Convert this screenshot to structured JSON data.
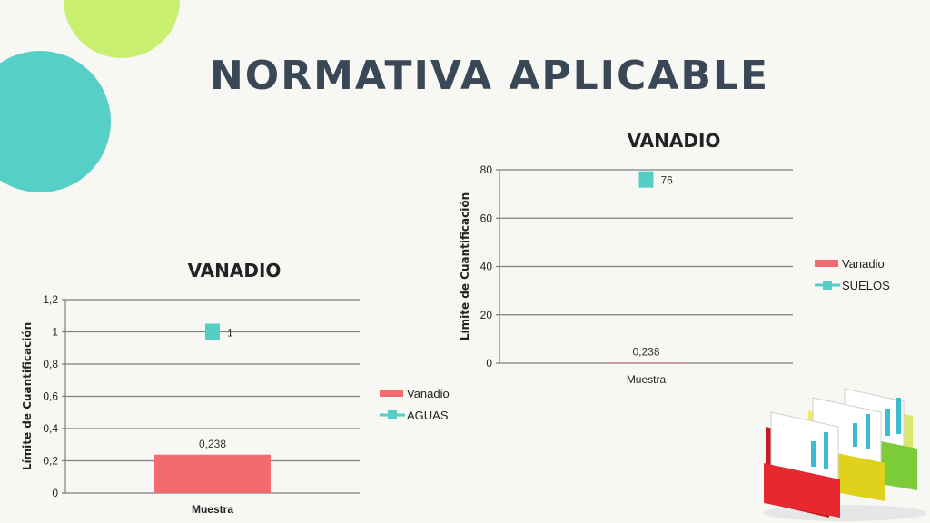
{
  "slide": {
    "title": "NORMATIVA APLICABLE"
  },
  "colors": {
    "background": "#f7f7f4",
    "title": "#3a4756",
    "circle_teal": "#56cfc6",
    "circle_green": "#c9ef70",
    "bar_red": "#f26b6f",
    "marker_teal": "#55cfc6",
    "grid": "#7f7f7f"
  },
  "decorations": {
    "folders_icon": "colored-folders-with-charts-icon"
  },
  "chart_data": [
    {
      "type": "bar",
      "title": "VANADIO",
      "xlabel": "Muestra",
      "ylabel": "Límite de Cuantificación",
      "categories": [
        "Muestra"
      ],
      "ylim": [
        0,
        1.2
      ],
      "yticks": [
        "0",
        "0,2",
        "0,4",
        "0,6",
        "0,8",
        "1",
        "1,2"
      ],
      "series": [
        {
          "name": "Vanadio",
          "kind": "bar",
          "values": [
            0.238
          ],
          "labels": [
            "0,238"
          ]
        },
        {
          "name": "AGUAS",
          "kind": "line-marker",
          "values": [
            1
          ],
          "labels": [
            "1"
          ]
        }
      ],
      "legend_position": "right",
      "grid": true
    },
    {
      "type": "bar",
      "title": "VANADIO",
      "xlabel": "Muestra",
      "ylabel": "Límite de Cuantificación",
      "categories": [
        "Muestra"
      ],
      "ylim": [
        0,
        80
      ],
      "yticks": [
        "0",
        "20",
        "40",
        "60",
        "80"
      ],
      "series": [
        {
          "name": "Vanadio",
          "kind": "bar",
          "values": [
            0.238
          ],
          "labels": [
            "0,238"
          ]
        },
        {
          "name": "SUELOS",
          "kind": "line-marker",
          "values": [
            76
          ],
          "labels": [
            "76"
          ]
        }
      ],
      "legend_position": "right",
      "grid": true
    }
  ]
}
